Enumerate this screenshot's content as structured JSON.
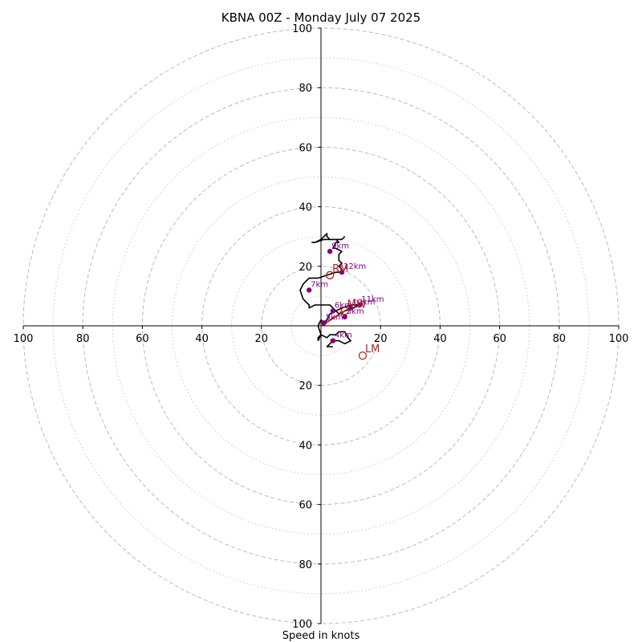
{
  "chart_data": {
    "type": "scatter",
    "subtype": "hodograph",
    "title": "KBNA 00Z - Monday July 07 2025",
    "xlabel": "Speed in knots",
    "ylabel": "",
    "xlim": [
      -100,
      100
    ],
    "ylim": [
      -100,
      100
    ],
    "tick_labels": [
      "100",
      "80",
      "60",
      "40",
      "20",
      "20",
      "40",
      "60",
      "80",
      "100"
    ],
    "x_tick_values": [
      -100,
      -80,
      -60,
      -40,
      -20,
      20,
      40,
      60,
      80,
      100
    ],
    "y_tick_labels": [
      "100",
      "80",
      "60",
      "40",
      "20",
      "20",
      "40",
      "60",
      "80",
      "100"
    ],
    "y_tick_values": [
      100,
      80,
      60,
      40,
      20,
      -20,
      -40,
      -60,
      -80,
      -100
    ],
    "rings_major": [
      20,
      40,
      60,
      80,
      100
    ],
    "rings_minor": [
      10,
      30,
      50,
      70,
      90
    ],
    "grid": true,
    "colors": {
      "trace": "#000000",
      "height_point": "#800080",
      "motion": "#b22222",
      "grid": "#bbbbbb"
    },
    "trace": [
      [
        -1,
        -5
      ],
      [
        0,
        -3
      ],
      [
        -1,
        0
      ],
      [
        0,
        2
      ],
      [
        1,
        1
      ],
      [
        2,
        2
      ],
      [
        3,
        4
      ],
      [
        5,
        5
      ],
      [
        7,
        6
      ],
      [
        10,
        7
      ],
      [
        12,
        7
      ],
      [
        13,
        7
      ],
      [
        11,
        6
      ],
      [
        8,
        5
      ],
      [
        6,
        4
      ],
      [
        5,
        5
      ],
      [
        4,
        6
      ],
      [
        3,
        7
      ],
      [
        1,
        7
      ],
      [
        -2,
        7
      ],
      [
        -4,
        6
      ],
      [
        -4,
        7
      ],
      [
        -6,
        9
      ],
      [
        -7,
        12
      ],
      [
        -6,
        14
      ],
      [
        -4,
        16
      ],
      [
        -1,
        16
      ],
      [
        2,
        17
      ],
      [
        5,
        18
      ],
      [
        7,
        18
      ],
      [
        7,
        19
      ],
      [
        6,
        20
      ],
      [
        7,
        21
      ],
      [
        6,
        22
      ],
      [
        6,
        24
      ],
      [
        7,
        25
      ],
      [
        5,
        26
      ],
      [
        4,
        26
      ],
      [
        5,
        28
      ],
      [
        6,
        28
      ],
      [
        5,
        29
      ],
      [
        4,
        29
      ],
      [
        3,
        29
      ],
      [
        2,
        30
      ],
      [
        2,
        31
      ],
      [
        0,
        29
      ],
      [
        -2,
        28
      ],
      [
        -3,
        28
      ],
      [
        -2,
        28
      ],
      [
        1,
        29
      ],
      [
        4,
        29
      ],
      [
        7,
        29
      ],
      [
        8,
        30
      ]
    ],
    "lower_trace": [
      [
        -1,
        -5
      ],
      [
        -1,
        -4
      ],
      [
        0,
        -3
      ],
      [
        2,
        -4
      ],
      [
        3,
        -3
      ],
      [
        5,
        -3
      ],
      [
        6,
        -2
      ],
      [
        8,
        -2
      ],
      [
        9,
        -4
      ],
      [
        10,
        -5
      ],
      [
        8,
        -6
      ],
      [
        6,
        -5
      ],
      [
        4,
        -5
      ],
      [
        3,
        -6
      ],
      [
        2,
        -7
      ],
      [
        4,
        -7
      ]
    ],
    "height_points": [
      {
        "label": "3km",
        "u": 8,
        "v": 3
      },
      {
        "label": "4km",
        "u": 4,
        "v": -5
      },
      {
        "label": "5km",
        "u": 1,
        "v": 1
      },
      {
        "label": "6km",
        "u": 4,
        "v": 5
      },
      {
        "label": "7km",
        "u": -4,
        "v": 12
      },
      {
        "label": "9km",
        "u": 3,
        "v": 25
      },
      {
        "label": "10km",
        "u": 10,
        "v": 6
      },
      {
        "label": "11km",
        "u": 13,
        "v": 7
      },
      {
        "label": "12km",
        "u": 7,
        "v": 18
      }
    ],
    "storm_motions": [
      {
        "label": "RM",
        "u": 3,
        "v": 17
      },
      {
        "label": "LM",
        "u": 14,
        "v": -10
      },
      {
        "label": "MW",
        "u": 8,
        "v": 5
      }
    ],
    "mean_wind_arrow": {
      "from": [
        0,
        0
      ],
      "to": [
        8,
        5
      ]
    }
  }
}
